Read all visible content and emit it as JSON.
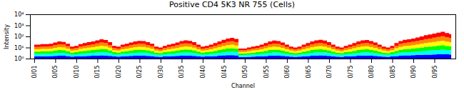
{
  "chart_data": {
    "type": "area",
    "title": "Positive CD4 5K3 NR 755 (Cells)",
    "xlabel": "Channel",
    "ylabel": "Intensity",
    "categories": [
      "0/01",
      null,
      null,
      null,
      null,
      "0/05",
      null,
      null,
      null,
      null,
      "0/10",
      null,
      null,
      null,
      null,
      "0/15",
      null,
      null,
      null,
      null,
      "0/20",
      null,
      null,
      null,
      null,
      "0/25",
      null,
      null,
      null,
      null,
      "0/30",
      null,
      null,
      null,
      null,
      "0/35",
      null,
      null,
      null,
      null,
      "0/40",
      null,
      null,
      null,
      null,
      "0/45",
      null,
      null,
      null,
      null,
      "0/50",
      null,
      null,
      null,
      null,
      "0/55",
      null,
      null,
      null,
      null,
      "0/60",
      null,
      null,
      null,
      null,
      "0/65",
      null,
      null,
      null,
      null,
      "0/70",
      null,
      null,
      null,
      null,
      "0/75",
      null,
      null,
      null,
      null,
      "0/80",
      null,
      null,
      null,
      null,
      "0/85",
      null,
      null,
      null,
      null,
      "0/90",
      null,
      null,
      null,
      null,
      "0/95",
      null,
      null,
      null,
      null
    ],
    "values": [
      18,
      18,
      20,
      20,
      22,
      28,
      35,
      32,
      22,
      12,
      14,
      20,
      25,
      30,
      35,
      45,
      55,
      48,
      30,
      14,
      12,
      18,
      22,
      28,
      35,
      40,
      38,
      30,
      22,
      12,
      10,
      14,
      18,
      22,
      28,
      38,
      45,
      40,
      30,
      18,
      12,
      14,
      18,
      25,
      35,
      50,
      65,
      75,
      60,
      8,
      8,
      10,
      12,
      14,
      18,
      25,
      35,
      42,
      38,
      28,
      18,
      12,
      10,
      12,
      18,
      25,
      35,
      45,
      50,
      42,
      30,
      18,
      12,
      10,
      14,
      18,
      25,
      35,
      45,
      48,
      38,
      28,
      18,
      12,
      10,
      14,
      25,
      38,
      50,
      55,
      65,
      80,
      100,
      130,
      150,
      180,
      220,
      260,
      200,
      160
    ],
    "colors": [
      "#0000ff",
      "#00ffff",
      "#00ff00",
      "#ffff00",
      "#ff8800",
      "#ff0000"
    ],
    "log": "y",
    "ylim": [
      1,
      10000
    ],
    "yticks": [
      {
        "value": 1,
        "label": "10⁰"
      },
      {
        "value": 10,
        "label": "10¹"
      },
      {
        "value": 100,
        "label": "10²"
      },
      {
        "value": 1000,
        "label": "10³"
      },
      {
        "value": 10000,
        "label": "10⁴"
      }
    ],
    "grid": false
  }
}
